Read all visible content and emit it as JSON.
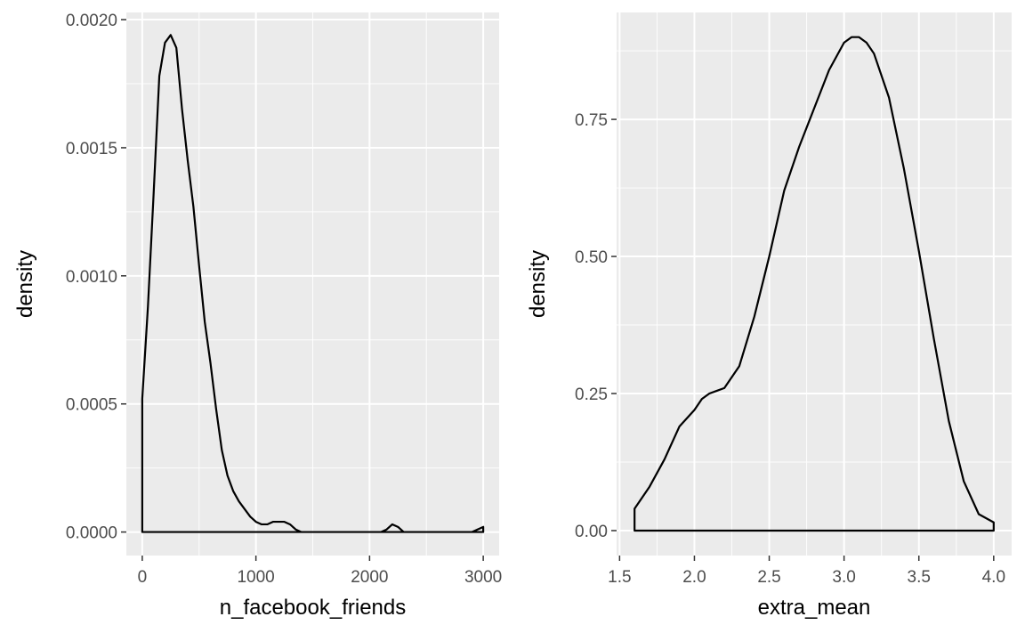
{
  "chart_data": [
    {
      "type": "area",
      "xlabel": "n_facebook_friends",
      "ylabel": "density",
      "xlim": [
        -140,
        3140
      ],
      "ylim": [
        -9.18e-05,
        0.002028
      ],
      "xticks": [
        0,
        1000,
        2000,
        3000
      ],
      "xtick_labels": [
        "0",
        "1000",
        "2000",
        "3000"
      ],
      "yticks": [
        0,
        0.0005,
        0.001,
        0.0015,
        0.002
      ],
      "ytick_labels": [
        "0.0000",
        "0.0005",
        "0.0010",
        "0.0015",
        "0.0020"
      ],
      "xminor": [
        500,
        1500,
        2500
      ],
      "yminor": [
        0.00025,
        0.00075,
        0.00125,
        0.00175
      ],
      "grid": true,
      "fill": "#EBEBEB",
      "outline": "#000000",
      "x": [
        0,
        50,
        100,
        150,
        200,
        250,
        300,
        350,
        400,
        450,
        500,
        550,
        600,
        650,
        700,
        750,
        800,
        850,
        900,
        950,
        1000,
        1050,
        1100,
        1150,
        1200,
        1250,
        1300,
        1350,
        1400,
        1450,
        1500,
        2000,
        2100,
        2150,
        2200,
        2250,
        2300,
        2350,
        2400,
        2600,
        2800,
        2900,
        2950,
        3000
      ],
      "y": [
        0.00052,
        0.00088,
        0.00132,
        0.00178,
        0.00191,
        0.00194,
        0.00189,
        0.00165,
        0.00145,
        0.00127,
        0.00104,
        0.00082,
        0.00066,
        0.00048,
        0.00032,
        0.00022,
        0.00016,
        0.00012,
        9e-05,
        6e-05,
        4e-05,
        3e-05,
        3e-05,
        4e-05,
        4e-05,
        4e-05,
        3e-05,
        1e-05,
        0.0,
        0.0,
        0.0,
        0.0,
        0.0,
        1e-05,
        3e-05,
        2e-05,
        0.0,
        0.0,
        0.0,
        0.0,
        0.0,
        0.0,
        1e-05,
        2e-05
      ]
    },
    {
      "type": "area",
      "xlabel": "extra_mean",
      "ylabel": "density",
      "xlim": [
        1.48,
        4.12
      ],
      "ylim": [
        -0.0455,
        0.945
      ],
      "xticks": [
        1.5,
        2.0,
        2.5,
        3.0,
        3.5,
        4.0
      ],
      "xtick_labels": [
        "1.5",
        "2.0",
        "2.5",
        "3.0",
        "3.5",
        "4.0"
      ],
      "yticks": [
        0,
        0.25,
        0.5,
        0.75
      ],
      "ytick_labels": [
        "0.00",
        "0.25",
        "0.50",
        "0.75"
      ],
      "xminor": [
        1.75,
        2.25,
        2.75,
        3.25,
        3.75
      ],
      "yminor": [
        0.125,
        0.375,
        0.625,
        0.875
      ],
      "grid": true,
      "fill": "#EBEBEB",
      "outline": "#000000",
      "x": [
        1.6,
        1.7,
        1.8,
        1.9,
        2.0,
        2.05,
        2.1,
        2.15,
        2.2,
        2.3,
        2.4,
        2.5,
        2.6,
        2.7,
        2.8,
        2.9,
        3.0,
        3.05,
        3.1,
        3.15,
        3.2,
        3.3,
        3.4,
        3.5,
        3.6,
        3.7,
        3.8,
        3.9,
        4.0
      ],
      "y": [
        0.04,
        0.08,
        0.13,
        0.19,
        0.22,
        0.24,
        0.25,
        0.255,
        0.26,
        0.3,
        0.39,
        0.5,
        0.62,
        0.7,
        0.77,
        0.84,
        0.89,
        0.9,
        0.9,
        0.89,
        0.87,
        0.79,
        0.66,
        0.51,
        0.35,
        0.2,
        0.09,
        0.03,
        0.015
      ]
    }
  ]
}
